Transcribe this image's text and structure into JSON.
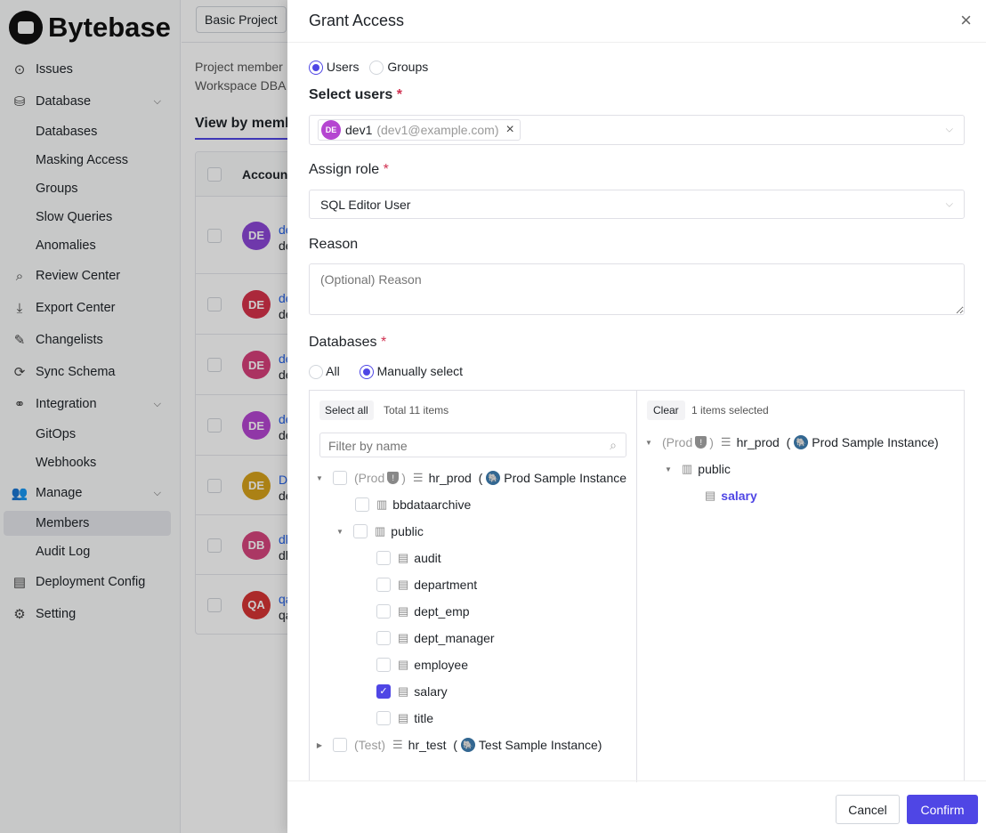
{
  "brand": "Bytebase",
  "sidebar": {
    "items": [
      {
        "label": "Issues",
        "icon": "circle-dot-icon"
      },
      {
        "label": "Database",
        "icon": "database-icon"
      },
      {
        "label": "Databases"
      },
      {
        "label": "Masking Access"
      },
      {
        "label": "Groups"
      },
      {
        "label": "Slow Queries"
      },
      {
        "label": "Anomalies"
      },
      {
        "label": "Review Center",
        "icon": "review-icon"
      },
      {
        "label": "Export Center",
        "icon": "download-icon"
      },
      {
        "label": "Changelists",
        "icon": "changelist-icon"
      },
      {
        "label": "Sync Schema",
        "icon": "sync-icon"
      },
      {
        "label": "Integration",
        "icon": "link-icon"
      },
      {
        "label": "GitOps"
      },
      {
        "label": "Webhooks"
      },
      {
        "label": "Manage",
        "icon": "users-icon"
      },
      {
        "label": "Members"
      },
      {
        "label": "Audit Log"
      },
      {
        "label": "Deployment Config",
        "icon": "config-icon"
      },
      {
        "label": "Setting",
        "icon": "gear-icon"
      }
    ]
  },
  "main": {
    "project": "Basic Project",
    "desc1": "Project member",
    "desc2": "Workspace DBA",
    "tab": "View by memb",
    "col_account": "Accoun",
    "rows": [
      {
        "initials": "DE",
        "color": "#8b47d6",
        "line1": "de",
        "line2": "de"
      },
      {
        "initials": "DE",
        "color": "#d6334a",
        "line1": "de",
        "line2": "de"
      },
      {
        "initials": "DE",
        "color": "#d63f7a",
        "line1": "de",
        "line2": "de"
      },
      {
        "initials": "DE",
        "color": "#b545d1",
        "line1": "de",
        "line2": "de"
      },
      {
        "initials": "DE",
        "color": "#d6a21b",
        "line1": "D",
        "line2": "de"
      },
      {
        "initials": "DB",
        "color": "#d6457e",
        "line1": "dl",
        "line2": "dl"
      },
      {
        "initials": "QA",
        "color": "#d63434",
        "line1": "qa",
        "line2": "qa"
      }
    ]
  },
  "drawer": {
    "title": "Grant Access",
    "type_users": "Users",
    "type_groups": "Groups",
    "select_users_label": "Select users",
    "required": "*",
    "user_chip": {
      "initials": "DE",
      "name": "dev1",
      "email": "(dev1@example.com)"
    },
    "assign_role_label": "Assign role",
    "role": "SQL Editor User",
    "reason_label": "Reason",
    "reason_placeholder": "(Optional) Reason",
    "databases_label": "Databases",
    "db_all": "All",
    "db_manual": "Manually select",
    "left": {
      "select_all": "Select all",
      "total": "Total 11 items",
      "filter_placeholder": "Filter by name",
      "db1": {
        "env": "(Prod",
        "paren_close": ")",
        "name": "hr_prod",
        "instance_open": "(",
        "instance": "Prod Sample Instance"
      },
      "schemas": [
        {
          "name": "bbdataarchive"
        },
        {
          "name": "public"
        }
      ],
      "tables": [
        {
          "name": "audit",
          "checked": false
        },
        {
          "name": "department",
          "checked": false
        },
        {
          "name": "dept_emp",
          "checked": false
        },
        {
          "name": "dept_manager",
          "checked": false
        },
        {
          "name": "employee",
          "checked": false
        },
        {
          "name": "salary",
          "checked": true
        },
        {
          "name": "title",
          "checked": false
        }
      ],
      "db2": {
        "env": "(Test)",
        "name": "hr_test",
        "instance_open": "(",
        "instance": "Test Sample Instance)"
      }
    },
    "right": {
      "clear": "Clear",
      "selected": "1 items selected",
      "db": {
        "env": "(Prod",
        "paren_close": ")",
        "name": "hr_prod",
        "instance_open": "(",
        "instance": "Prod Sample Instance)"
      },
      "schema": "public",
      "table": "salary"
    },
    "cancel": "Cancel",
    "confirm": "Confirm"
  },
  "colors": {
    "accent": "#4f46e5",
    "required": "#d03050"
  }
}
